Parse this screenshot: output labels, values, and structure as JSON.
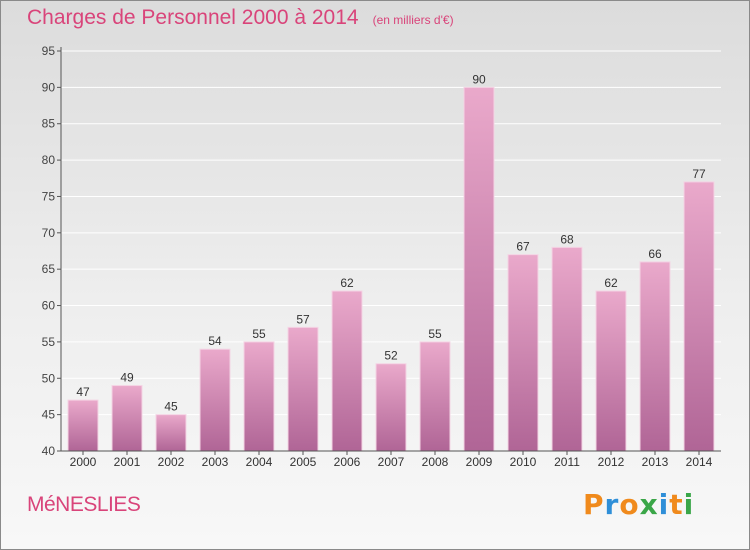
{
  "title": "Charges de Personnel 2000 à 2014",
  "unit": "(en milliers d'€)",
  "commune": "MéNESLIES",
  "logo": {
    "text": "Proxiti",
    "letters": [
      "P",
      "r",
      "o",
      "x",
      "i",
      "t",
      "i"
    ],
    "colors": [
      "#f08a1c",
      "#2f8fd8",
      "#f08a1c",
      "#3aa648",
      "#2f8fd8",
      "#f08a1c",
      "#3aa648"
    ]
  },
  "colors": {
    "title": "#d9447a",
    "bar": "#d67ba9",
    "bar_light": "#eaa9cb",
    "bar_dark": "#b06596"
  },
  "chart_data": {
    "type": "bar",
    "categories": [
      "2000",
      "2001",
      "2002",
      "2003",
      "2004",
      "2005",
      "2006",
      "2007",
      "2008",
      "2009",
      "2010",
      "2011",
      "2012",
      "2013",
      "2014"
    ],
    "values": [
      47,
      49,
      45,
      54,
      55,
      57,
      62,
      52,
      55,
      90,
      67,
      68,
      62,
      66,
      77
    ],
    "ylim": [
      40,
      95
    ],
    "yticks": [
      40,
      45,
      50,
      55,
      60,
      65,
      70,
      75,
      80,
      85,
      90,
      95
    ],
    "grid": true
  }
}
